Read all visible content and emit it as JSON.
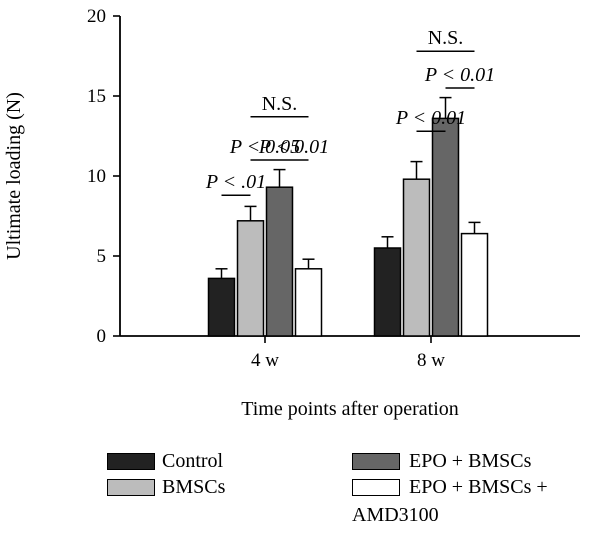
{
  "chart_data": {
    "type": "bar",
    "categories": [
      "4 w",
      "8 w"
    ],
    "series": [
      {
        "name": "Control",
        "values": [
          3.6,
          5.5
        ],
        "errors": [
          0.6,
          0.7
        ],
        "color": "#222222"
      },
      {
        "name": "BMSCs",
        "values": [
          7.2,
          9.8
        ],
        "errors": [
          0.9,
          1.1
        ],
        "color": "#bcbcbc"
      },
      {
        "name": "EPO + BMSCs",
        "values": [
          9.3,
          13.6
        ],
        "errors": [
          1.1,
          1.3
        ],
        "color": "#666666"
      },
      {
        "name": "EPO + BMSCs + AMD3100",
        "values": [
          4.2,
          6.4
        ],
        "errors": [
          0.6,
          0.7
        ],
        "color": "#ffffff"
      }
    ],
    "xlabel": "Time points after operation",
    "ylabel": "Ultimate loading (N)",
    "ylim": [
      0,
      20
    ],
    "yticks": [
      "0",
      "5",
      "10",
      "15",
      "20"
    ],
    "grid": false,
    "legend_position": "bottom",
    "annotations": [
      {
        "text": "P < .01",
        "group": 0,
        "from": 0,
        "to": 1,
        "level": 8.8
      },
      {
        "text": "P < 0.05",
        "group": 0,
        "from": 1,
        "to": 2,
        "level": 11.0
      },
      {
        "text": "P < 0.01",
        "group": 0,
        "from": 2,
        "to": 3,
        "level": 11.0
      },
      {
        "text": "N.S.",
        "group": 0,
        "from": 1,
        "to": 3,
        "level": 13.7
      },
      {
        "text": "P < 0.01",
        "group": 1,
        "from": 1,
        "to": 2,
        "level": 12.8
      },
      {
        "text": "P < 0.01",
        "group": 1,
        "from": 2,
        "to": 3,
        "level": 15.5
      },
      {
        "text": "N.S.",
        "group": 1,
        "from": 1,
        "to": 3,
        "level": 17.8
      }
    ]
  },
  "legend": {
    "control": "Control",
    "bmscs": "BMSCs",
    "epo_bmscs": "EPO + BMSCs",
    "epo_bmscs_amd_line1": "EPO + BMSCs +",
    "epo_bmscs_amd_line2": "AMD3100"
  }
}
